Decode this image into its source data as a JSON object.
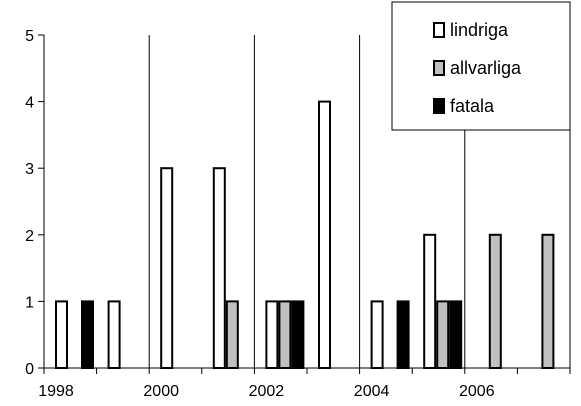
{
  "chart_data": {
    "type": "bar",
    "title": "",
    "xlabel": "",
    "ylabel": "",
    "ylim": [
      0,
      5
    ],
    "yticks": [
      0,
      1,
      2,
      3,
      4,
      5
    ],
    "x": [
      1998,
      1999,
      2000,
      2001,
      2002,
      2003,
      2004,
      2005,
      2006,
      2007
    ],
    "x_tick_labels": [
      "1998",
      "2000",
      "2002",
      "2004",
      "2006"
    ],
    "series": [
      {
        "name": "lindriga",
        "color": "#ffffff",
        "values": [
          1,
          1,
          3,
          3,
          1,
          4,
          1,
          2,
          0,
          0
        ]
      },
      {
        "name": "allvarliga",
        "color": "#c0c0c0",
        "values": [
          0,
          0,
          0,
          1,
          1,
          0,
          0,
          1,
          2,
          2
        ]
      },
      {
        "name": "fatala",
        "color": "#000000",
        "values": [
          1,
          0,
          0,
          0,
          1,
          0,
          1,
          1,
          0,
          0
        ]
      }
    ],
    "grid": {
      "vertical": true,
      "horizontal": false
    },
    "legend_position": "top-right"
  }
}
